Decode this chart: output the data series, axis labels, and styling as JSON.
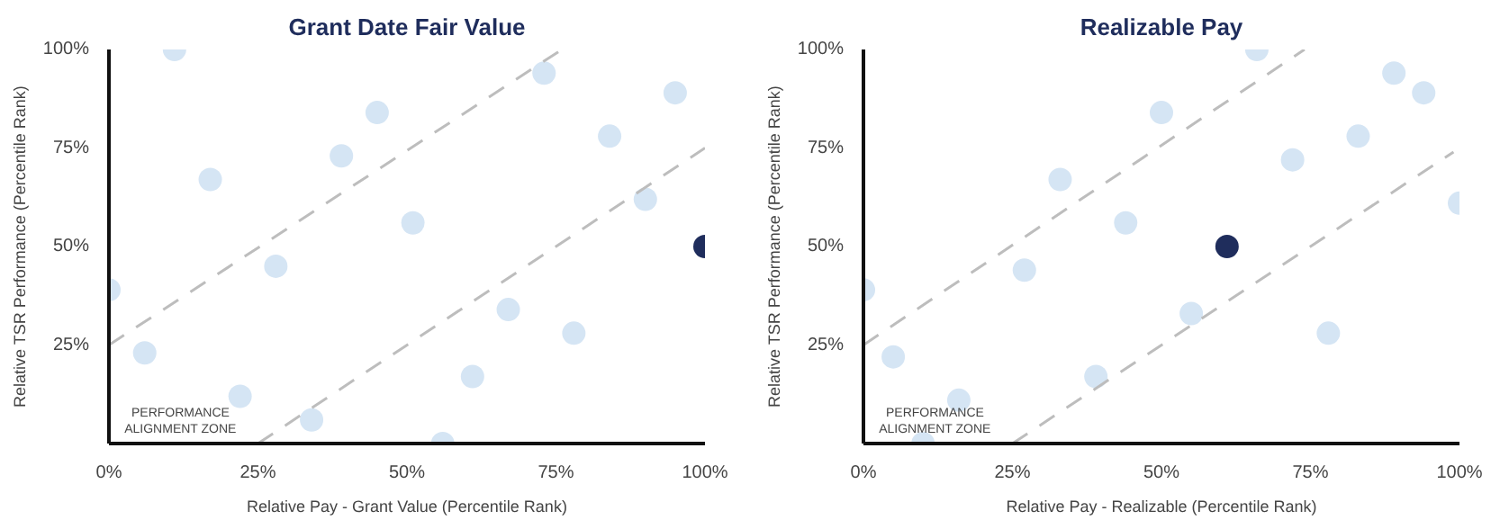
{
  "chart_data": [
    {
      "type": "scatter",
      "title": "Grant Date Fair Value",
      "xlabel": "Relative Pay - Grant Value (Percentile Rank)",
      "ylabel": "Relative TSR Performance (Percentile Rank)",
      "annotations": [
        "PERFORMANCE\nALIGNMENT ZONE"
      ],
      "xlim": [
        0,
        100
      ],
      "ylim": [
        0,
        100
      ],
      "xticks": [
        {
          "value": 0,
          "label": "0%"
        },
        {
          "value": 25,
          "label": "25%"
        },
        {
          "value": 50,
          "label": "50%"
        },
        {
          "value": 75,
          "label": "75%"
        },
        {
          "value": 100,
          "label": "100%"
        }
      ],
      "yticks": [
        {
          "value": 25,
          "label": "25%"
        },
        {
          "value": 50,
          "label": "50%"
        },
        {
          "value": 75,
          "label": "75%"
        },
        {
          "value": 100,
          "label": "100%"
        }
      ],
      "grid": false,
      "series": [
        {
          "marker": "circle",
          "color": "#d5e5f4",
          "x": [
            11,
            17,
            0,
            6,
            22,
            28,
            34,
            39,
            45,
            51,
            56,
            61,
            67,
            73,
            78,
            84,
            90,
            95
          ],
          "values": [
            100,
            67,
            39,
            23,
            12,
            45,
            6,
            73,
            84,
            56,
            0,
            17,
            34,
            94,
            28,
            78,
            62,
            89
          ]
        },
        {
          "marker": "circle",
          "color": "#1f2d5c",
          "x": [
            100
          ],
          "values": [
            50
          ]
        },
        {
          "type": "line",
          "color": "#bdbdbd",
          "line_style": "dashed",
          "x": [
            0,
            76
          ],
          "values": [
            25,
            100
          ]
        },
        {
          "type": "line",
          "color": "#bdbdbd",
          "line_style": "dashed",
          "x": [
            25,
            100
          ],
          "values": [
            0,
            75
          ]
        }
      ]
    },
    {
      "type": "scatter",
      "title": "Realizable Pay",
      "xlabel": "Relative Pay - Realizable (Percentile Rank)",
      "ylabel": "Relative TSR Performance (Percentile Rank)",
      "annotations": [
        "PERFORMANCE\nALIGNMENT ZONE"
      ],
      "xlim": [
        0,
        100
      ],
      "ylim": [
        0,
        100
      ],
      "xticks": [
        {
          "value": 0,
          "label": "0%"
        },
        {
          "value": 25,
          "label": "25%"
        },
        {
          "value": 50,
          "label": "50%"
        },
        {
          "value": 75,
          "label": "75%"
        },
        {
          "value": 100,
          "label": "100%"
        }
      ],
      "yticks": [
        {
          "value": 25,
          "label": "25%"
        },
        {
          "value": 50,
          "label": "50%"
        },
        {
          "value": 75,
          "label": "75%"
        },
        {
          "value": 100,
          "label": "100%"
        }
      ],
      "grid": false,
      "series": [
        {
          "marker": "circle",
          "color": "#d5e5f4",
          "x": [
            66,
            89,
            94,
            50,
            83,
            72,
            33,
            100,
            44,
            27,
            0,
            55,
            78,
            5,
            16,
            39,
            10
          ],
          "values": [
            100,
            94,
            89,
            84,
            78,
            72,
            67,
            61,
            56,
            44,
            39,
            33,
            28,
            22,
            11,
            17,
            0
          ]
        },
        {
          "marker": "circle",
          "color": "#1f2d5c",
          "x": [
            61
          ],
          "values": [
            50
          ]
        },
        {
          "type": "line",
          "color": "#bdbdbd",
          "line_style": "dashed",
          "x": [
            0,
            74
          ],
          "values": [
            25,
            100
          ]
        },
        {
          "type": "line",
          "color": "#bdbdbd",
          "line_style": "dashed",
          "x": [
            25,
            99
          ],
          "values": [
            0,
            74
          ]
        }
      ]
    }
  ]
}
